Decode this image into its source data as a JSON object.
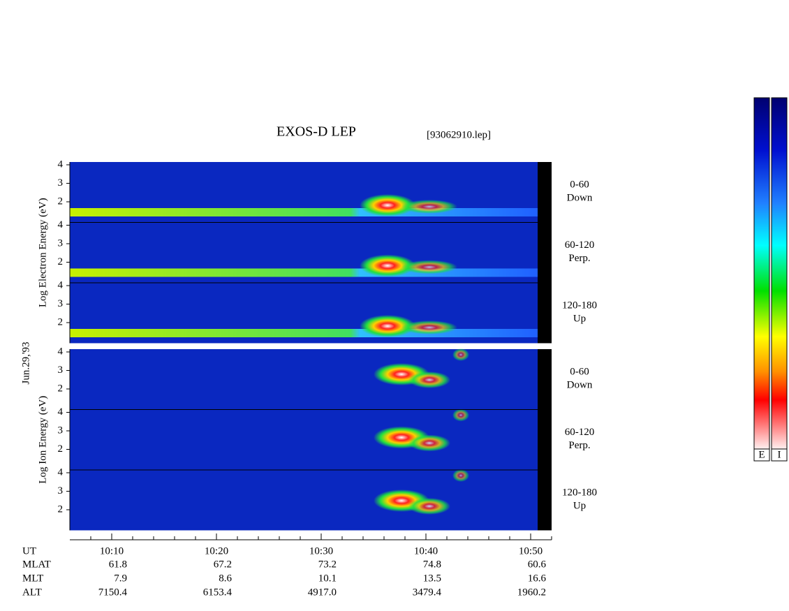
{
  "header": {
    "title": "EXOS-D LEP",
    "file": "[93062910.lep]"
  },
  "date": "Jun.29,'93",
  "groups": [
    {
      "label": "Log  Electron  Energy (eV)",
      "panels": [
        {
          "angle": "0-60",
          "direction": "Down"
        },
        {
          "angle": "60-120",
          "direction": "Perp."
        },
        {
          "angle": "120-180",
          "direction": "Up"
        }
      ]
    },
    {
      "label": "Log  Ion  Energy (eV)",
      "panels": [
        {
          "angle": "0-60",
          "direction": "Down"
        },
        {
          "angle": "60-120",
          "direction": "Perp."
        },
        {
          "angle": "120-180",
          "direction": "Up"
        }
      ]
    }
  ],
  "yticks": [
    4,
    3,
    2
  ],
  "xticks": [
    "10:10",
    "10:20",
    "10:30",
    "10:40",
    "10:50"
  ],
  "rows": [
    {
      "name": "UT"
    },
    {
      "name": "MLAT",
      "values": [
        "61.8",
        "67.2",
        "73.2",
        "74.8",
        "60.6"
      ]
    },
    {
      "name": "MLT",
      "values": [
        "7.9",
        "8.6",
        "10.1",
        "13.5",
        "16.6"
      ]
    },
    {
      "name": "ALT",
      "values": [
        "7150.4",
        "6153.4",
        "4917.0",
        "3479.4",
        "1960.2"
      ]
    }
  ],
  "colorbars": [
    "E",
    "I"
  ]
}
